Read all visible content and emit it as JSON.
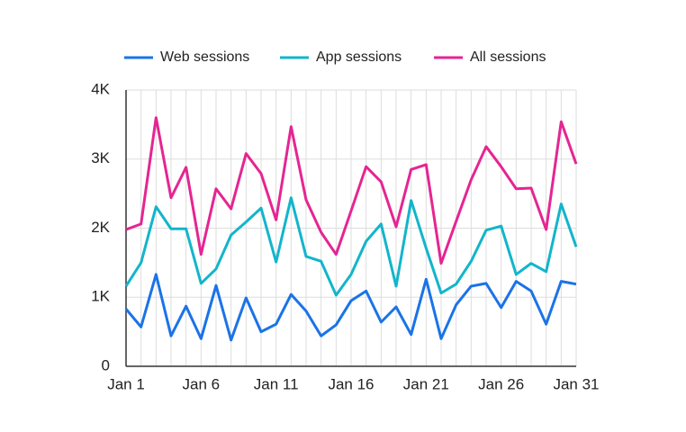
{
  "chart_data": {
    "type": "line",
    "categories": [
      "Jan 1",
      null,
      null,
      null,
      null,
      "Jan 6",
      null,
      null,
      null,
      null,
      "Jan 11",
      null,
      null,
      null,
      null,
      "Jan 16",
      null,
      null,
      null,
      null,
      "Jan 21",
      null,
      null,
      null,
      null,
      "Jan 26",
      null,
      null,
      null,
      null,
      "Jan 31"
    ],
    "series": [
      {
        "name": "Web sessions",
        "color": "#1a73e8",
        "values": [
          830,
          570,
          1330,
          440,
          870,
          400,
          1170,
          380,
          990,
          500,
          610,
          1040,
          800,
          440,
          600,
          950,
          1090,
          640,
          860,
          460,
          1260,
          400,
          890,
          1160,
          1200,
          850,
          1230,
          1090,
          610,
          1230,
          1190
        ]
      },
      {
        "name": "App sessions",
        "color": "#12b5cb",
        "values": [
          1160,
          1500,
          2310,
          1990,
          1990,
          1200,
          1410,
          1900,
          2090,
          2290,
          1510,
          2440,
          1590,
          1520,
          1030,
          1330,
          1810,
          2060,
          1160,
          2400,
          1710,
          1060,
          1190,
          1520,
          1970,
          2030,
          1330,
          1490,
          1370,
          2350,
          1730
        ]
      },
      {
        "name": "All sessions",
        "color": "#e52592",
        "values": [
          1980,
          2060,
          3600,
          2440,
          2880,
          1620,
          2570,
          2280,
          3080,
          2790,
          2120,
          3470,
          2410,
          1940,
          1620,
          2250,
          2890,
          2670,
          2020,
          2850,
          2920,
          1490,
          2100,
          2700,
          3180,
          2890,
          2570,
          2580,
          1980,
          3540,
          2930
        ]
      }
    ],
    "ylim": [
      0,
      4000
    ],
    "yticks": [
      0,
      {
        "value": 1000,
        "label": "1K"
      },
      {
        "value": 2000,
        "label": "2K"
      },
      {
        "value": 3000,
        "label": "3K"
      },
      {
        "value": 4000,
        "label": "4K"
      }
    ],
    "grid": true
  }
}
